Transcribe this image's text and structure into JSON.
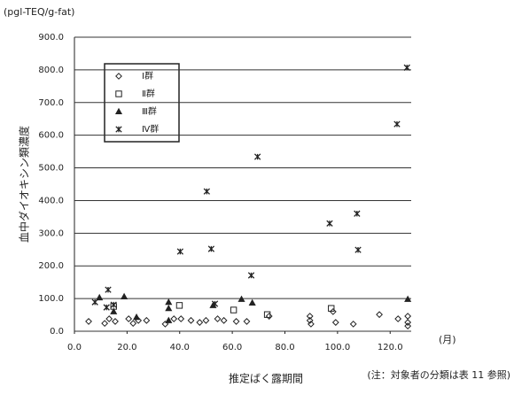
{
  "chart_data": {
    "type": "scatter",
    "y_unit": "(pgl-TEQ/g-fat)",
    "y_label": "血中ダイオキシン類濃度",
    "x_unit": "(月)",
    "x_label": "推定ばく露期間",
    "note": "(注：対象者の分類は表 11 参照)",
    "xlim": [
      0,
      128
    ],
    "ylim": [
      0,
      900
    ],
    "xticks": [
      {
        "value": 0,
        "label": "0.0"
      },
      {
        "value": 20,
        "label": "20.0"
      },
      {
        "value": 40,
        "label": "40.0"
      },
      {
        "value": 60,
        "label": "60.0"
      },
      {
        "value": 80,
        "label": "80.0"
      },
      {
        "value": 100,
        "label": "100.0"
      },
      {
        "value": 120,
        "label": "120.0"
      }
    ],
    "yticks": [
      {
        "value": 0,
        "label": "0.0"
      },
      {
        "value": 100,
        "label": "100.0"
      },
      {
        "value": 200,
        "label": "200.0"
      },
      {
        "value": 300,
        "label": "300.0"
      },
      {
        "value": 400,
        "label": "400.0"
      },
      {
        "value": 500,
        "label": "500.0"
      },
      {
        "value": 600,
        "label": "600.0"
      },
      {
        "value": 700,
        "label": "700.0"
      },
      {
        "value": 800,
        "label": "800.0"
      },
      {
        "value": 900,
        "label": "900.0"
      }
    ],
    "grid": true,
    "legend": "upper-left",
    "series": [
      {
        "name": "Ⅰ群",
        "marker": "diamond",
        "color": "#222",
        "x": [
          5.4,
          11.5,
          13.2,
          15.5,
          20.6,
          22.3,
          24.3,
          27.4,
          34.5,
          37.8,
          40.5,
          44.3,
          47.6,
          50,
          54.4,
          56.8,
          61.5,
          65.5,
          74,
          89.5,
          89.9,
          98.3,
          99.3,
          106,
          115.9,
          123,
          126.7,
          126.7,
          126.7,
          89.5
        ],
        "values": [
          30,
          24,
          38,
          30,
          38,
          24,
          33,
          33,
          22,
          38,
          38,
          33,
          27,
          33,
          38,
          33,
          30,
          30,
          46,
          46,
          22,
          60,
          27,
          22,
          51,
          38,
          46,
          27,
          16,
          33
        ]
      },
      {
        "name": "Ⅱ群",
        "marker": "square",
        "color": "#222",
        "x": [
          39.9,
          14.9,
          73.3,
          97.6,
          60.5
        ],
        "values": [
          79,
          76,
          51,
          70,
          65
        ]
      },
      {
        "name": "Ⅲ群",
        "marker": "triangle",
        "color": "#222",
        "x": [
          9.5,
          18.9,
          35.8,
          35.8,
          14.9,
          23.6,
          52.7,
          63.5,
          67.6,
          126.7,
          35.8
        ],
        "values": [
          103,
          106,
          89,
          70,
          60,
          43,
          79,
          98,
          87,
          98,
          33
        ]
      },
      {
        "name": "Ⅳ群",
        "marker": "star",
        "color": "#222",
        "x": [
          126.4,
          122.6,
          69.6,
          50.3,
          52,
          40.2,
          97,
          107.4,
          107.8,
          67.2,
          12.8,
          7.8,
          12.2,
          14.9,
          53.4
        ],
        "values": [
          807,
          634,
          534,
          428,
          252,
          244,
          330,
          360,
          249,
          171,
          127,
          89,
          73,
          81,
          84
        ]
      }
    ]
  }
}
